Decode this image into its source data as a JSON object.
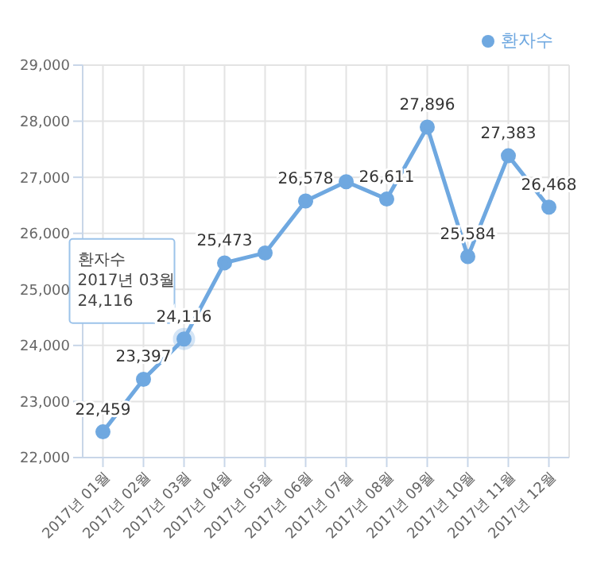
{
  "chart_data": {
    "type": "line",
    "categories": [
      "2017년 01월",
      "2017년 02월",
      "2017년 03월",
      "2017년 04월",
      "2017년 05월",
      "2017년 06월",
      "2017년 07월",
      "2017년 08월",
      "2017년 09월",
      "2017년 10월",
      "2017년 11월",
      "2017년 12월"
    ],
    "series": [
      {
        "name": "환자수",
        "color": "#6fa8e0",
        "values": [
          22459,
          23397,
          24116,
          25473,
          25650,
          26578,
          26920,
          26611,
          27896,
          25584,
          27383,
          26468
        ],
        "value_labels": [
          "22,459",
          "23,397",
          "24,116",
          "25,473",
          null,
          "26,578",
          null,
          "26,611",
          "27,896",
          "25,584",
          "27,383",
          "26,468"
        ]
      }
    ],
    "ylim": [
      22000,
      29000
    ],
    "yticks": [
      {
        "value": 22000,
        "label": "22,000"
      },
      {
        "value": 23000,
        "label": "23,000"
      },
      {
        "value": 24000,
        "label": "24,000"
      },
      {
        "value": 25000,
        "label": "25,000"
      },
      {
        "value": 26000,
        "label": "26,000"
      },
      {
        "value": 27000,
        "label": "27,000"
      },
      {
        "value": 28000,
        "label": "28,000"
      },
      {
        "value": 29000,
        "label": "29,000"
      }
    ],
    "grid": true,
    "legend": "top right",
    "marker": "circle",
    "line_style": "solid",
    "annotations": [
      {
        "text": "환자수\n2017년 03월\n24,116",
        "x": "2017년 03월",
        "y": 24116
      }
    ]
  }
}
